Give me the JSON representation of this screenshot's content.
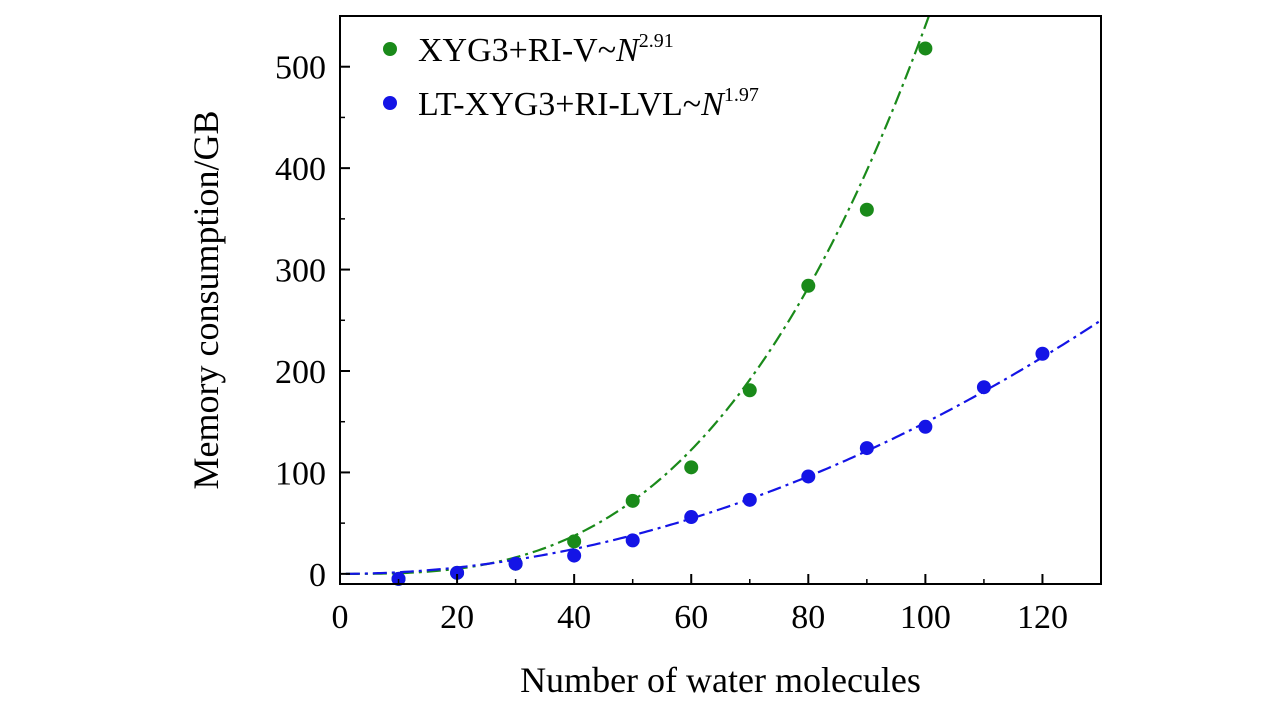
{
  "chart_data": {
    "type": "scatter",
    "title": "",
    "xlabel": "Number of water molecules",
    "ylabel": "Memory consumption/GB",
    "xlim": [
      0,
      130
    ],
    "ylim": [
      -10,
      550
    ],
    "xticks": [
      0,
      20,
      40,
      60,
      80,
      100,
      120
    ],
    "yticks": [
      0,
      100,
      200,
      300,
      400,
      500
    ],
    "grid": false,
    "legend_position": "top-left",
    "series": [
      {
        "name": "XYG3+RI-V",
        "legend_prefix": "XYG3+RI-V~",
        "legend_var": "N",
        "legend_exp": "2.91",
        "color": "#1a8a1a",
        "fit": {
          "coef": 0.000818,
          "exponent": 2.91,
          "style": "dash-dot"
        },
        "x": [
          10,
          20,
          30,
          40,
          50,
          60,
          70,
          80,
          90,
          100
        ],
        "y": [
          -5,
          1,
          10,
          32,
          72,
          105,
          181,
          284,
          359,
          518
        ]
      },
      {
        "name": "LT-XYG3+RI-LVL",
        "legend_prefix": "LT-XYG3+RI-LVL~",
        "legend_var": "N",
        "legend_exp": "1.97",
        "color": "#1414e6",
        "fit": {
          "coef": 0.01712,
          "exponent": 1.97,
          "style": "dash-dot"
        },
        "x": [
          10,
          20,
          30,
          40,
          50,
          60,
          70,
          80,
          90,
          100,
          110,
          120
        ],
        "y": [
          -5,
          1,
          10,
          18,
          33,
          56,
          73,
          96,
          124,
          145,
          184,
          217
        ]
      }
    ]
  }
}
